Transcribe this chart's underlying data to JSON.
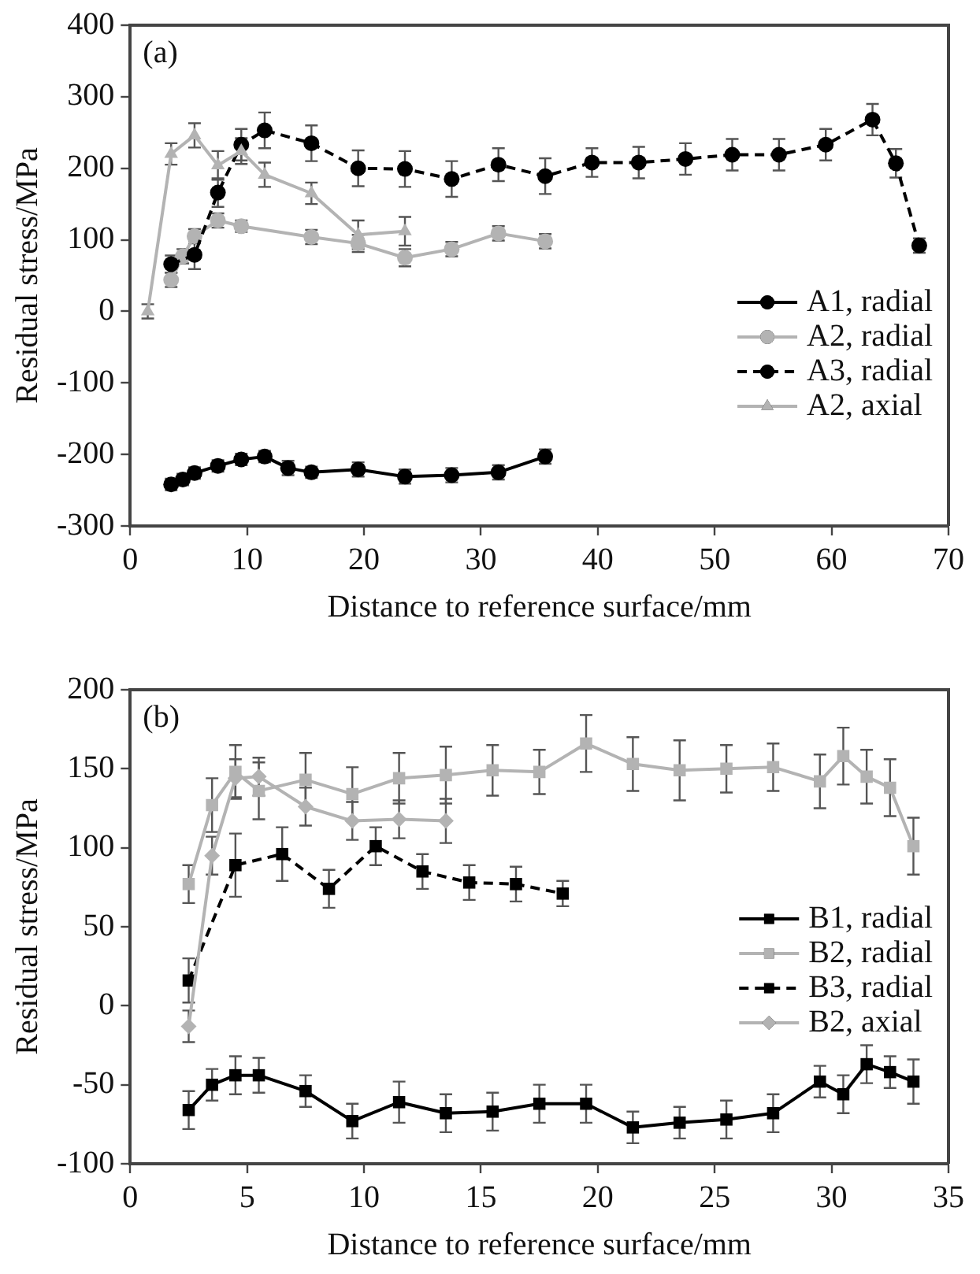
{
  "chart_data": [
    {
      "type": "line",
      "xlabel": "Distance to reference surface/mm",
      "ylabel": "Residual stress/MPa",
      "annotations": [
        "(a)"
      ],
      "xlim": [
        0,
        70
      ],
      "xticks": [
        0,
        10,
        20,
        30,
        40,
        50,
        60,
        70
      ],
      "ylim": [
        -300,
        400
      ],
      "yticks": [
        -300,
        -200,
        -100,
        0,
        100,
        200,
        300,
        400
      ],
      "grid": false,
      "legend": "right",
      "series": [
        {
          "name": "A1, radial",
          "color": "#000000",
          "marker": "circle",
          "line_style": "solid",
          "x": [
            3.5,
            4.5,
            5.5,
            7.5,
            9.5,
            11.5,
            13.5,
            15.5,
            19.5,
            23.5,
            27.5,
            31.5,
            35.5
          ],
          "values": [
            -242,
            -235,
            -226,
            -216,
            -207,
            -203,
            -219,
            -225,
            -221,
            -231,
            -229,
            -225,
            -203
          ],
          "errors": [
            8,
            8,
            8,
            8,
            8,
            8,
            10,
            8,
            10,
            10,
            10,
            10,
            10
          ]
        },
        {
          "name": "A2, radial",
          "color": "#b3b3b3",
          "marker": "circle",
          "line_style": "solid",
          "x": [
            3.5,
            4.5,
            5.5,
            7.5,
            9.5,
            15.5,
            19.5,
            23.5,
            27.5,
            31.5,
            35.5
          ],
          "values": [
            44,
            77,
            105,
            127,
            119,
            104,
            95,
            75,
            87,
            109,
            98
          ],
          "errors": [
            10,
            10,
            10,
            10,
            8,
            10,
            12,
            12,
            10,
            10,
            10
          ]
        },
        {
          "name": "A3, radial",
          "color": "#000000",
          "marker": "circle",
          "line_style": "dashed",
          "x": [
            3.5,
            5.5,
            7.5,
            9.5,
            11.5,
            13.5,
            15.5,
            19.5,
            23.5,
            27.5,
            31.5,
            35.5,
            39.5,
            43.5,
            47.5,
            51.5,
            55.5,
            59.5,
            63.5,
            65.5,
            67.5
          ],
          "values": [
            66,
            79,
            166,
            233,
            253,
            null,
            235,
            200,
            199,
            185,
            205,
            189,
            208,
            208,
            213,
            219,
            219,
            233,
            268,
            207,
            92
          ],
          "errors": [
            12,
            20,
            20,
            22,
            25,
            null,
            25,
            25,
            25,
            25,
            23,
            25,
            20,
            22,
            22,
            22,
            22,
            22,
            22,
            20,
            10
          ]
        },
        {
          "name": "A2, axial",
          "color": "#b3b3b3",
          "marker": "triangle",
          "line_style": "solid",
          "x": [
            1.5,
            3.5,
            5.5,
            7.5,
            9.5,
            11.5,
            15.5,
            19.5,
            23.5
          ],
          "values": [
            0,
            220,
            246,
            204,
            224,
            191,
            165,
            107,
            112
          ],
          "errors": [
            10,
            15,
            17,
            20,
            18,
            17,
            15,
            20,
            20
          ]
        }
      ]
    },
    {
      "type": "line",
      "xlabel": "Distance to reference surface/mm",
      "ylabel": "Residual stress/MPa",
      "annotations": [
        "(b)"
      ],
      "xlim": [
        0,
        35
      ],
      "xticks": [
        0,
        5,
        10,
        15,
        20,
        25,
        30,
        35
      ],
      "ylim": [
        -100,
        200
      ],
      "yticks": [
        -100,
        -50,
        0,
        50,
        100,
        150,
        200
      ],
      "grid": false,
      "legend": "right",
      "series": [
        {
          "name": "B1, radial",
          "color": "#000000",
          "marker": "square",
          "line_style": "solid",
          "x": [
            2.5,
            3.5,
            4.5,
            5.5,
            7.5,
            9.5,
            11.5,
            13.5,
            15.5,
            17.5,
            19.5,
            21.5,
            23.5,
            25.5,
            27.5,
            29.5,
            30.5,
            31.5,
            32.5,
            33.5
          ],
          "values": [
            -66,
            -50,
            -44,
            -44,
            -54,
            -73,
            -61,
            -68,
            -67,
            -62,
            -62,
            -77,
            -74,
            -72,
            -68,
            -48,
            -56,
            -37,
            -42,
            -48
          ],
          "errors": [
            12,
            10,
            12,
            11,
            10,
            11,
            13,
            12,
            12,
            12,
            12,
            10,
            10,
            12,
            12,
            10,
            12,
            12,
            10,
            14
          ]
        },
        {
          "name": "B2, radial",
          "color": "#b3b3b3",
          "marker": "square",
          "line_style": "solid",
          "x": [
            2.5,
            3.5,
            4.5,
            5.5,
            7.5,
            9.5,
            11.5,
            13.5,
            15.5,
            17.5,
            19.5,
            21.5,
            23.5,
            25.5,
            27.5,
            29.5,
            30.5,
            31.5,
            32.5,
            33.5
          ],
          "values": [
            77,
            127,
            148,
            136,
            143,
            134,
            144,
            146,
            149,
            148,
            166,
            153,
            149,
            150,
            151,
            142,
            158,
            145,
            138,
            101
          ],
          "errors": [
            12,
            17,
            17,
            18,
            17,
            17,
            16,
            18,
            16,
            14,
            18,
            17,
            19,
            15,
            15,
            17,
            18,
            17,
            18,
            18
          ]
        },
        {
          "name": "B3, radial",
          "color": "#000000",
          "marker": "square",
          "line_style": "dashed",
          "x": [
            2.5,
            4.5,
            6.5,
            8.5,
            10.5,
            12.5,
            14.5,
            16.5,
            18.5
          ],
          "values": [
            16,
            89,
            96,
            74,
            101,
            85,
            78,
            77,
            71
          ],
          "errors": [
            14,
            20,
            17,
            12,
            12,
            11,
            11,
            11,
            8
          ]
        },
        {
          "name": "B2, axial",
          "color": "#b3b3b3",
          "marker": "diamond",
          "line_style": "solid",
          "x": [
            2.5,
            3.5,
            4.5,
            5.5,
            7.5,
            9.5,
            11.5,
            13.5
          ],
          "values": [
            -13,
            95,
            144,
            145,
            126,
            117,
            118,
            117
          ],
          "errors": [
            10,
            12,
            12,
            12,
            12,
            12,
            12,
            14
          ]
        }
      ]
    }
  ]
}
